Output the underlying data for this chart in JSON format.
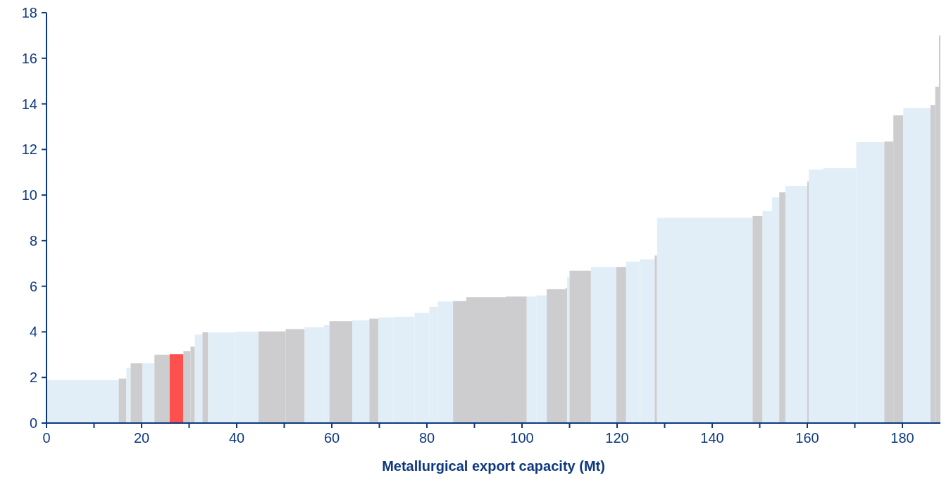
{
  "chart_data": {
    "type": "histogram",
    "xlabel": "Metallurgical export capacity (Mt)",
    "bins": [
      0,
      15.2,
      16.8,
      17.7,
      20.2,
      22.7,
      25.9,
      28.8,
      30.3,
      31.2,
      32.8,
      34.0,
      39.6,
      44.6,
      50.3,
      54.3,
      58.3,
      59.5,
      64.3,
      67.9,
      69.8,
      73.0,
      77.4,
      80.5,
      82.3,
      85.5,
      88.3,
      96.6,
      101.0,
      103.0,
      105.2,
      109.2,
      109.5,
      110.0,
      114.5,
      119.8,
      121.9,
      124.8,
      127.9,
      128.4,
      148.5,
      150.6,
      152.6,
      154.1,
      155.4,
      160.0,
      160.3,
      163.4,
      170.3,
      176.2,
      178.1,
      180.2,
      185.9,
      186.9,
      187.7,
      188.0
    ],
    "values": [
      1.88,
      1.95,
      2.42,
      2.62,
      2.62,
      3.0,
      3.02,
      3.15,
      3.35,
      3.88,
      3.98,
      3.97,
      4.0,
      4.02,
      4.12,
      4.2,
      4.3,
      4.47,
      4.5,
      4.58,
      4.63,
      4.66,
      4.83,
      5.1,
      5.33,
      5.35,
      5.52,
      5.55,
      5.55,
      5.6,
      5.87,
      5.93,
      6.4,
      6.68,
      6.85,
      6.85,
      7.08,
      7.18,
      7.35,
      9.0,
      9.08,
      9.3,
      9.9,
      10.12,
      10.4,
      10.6,
      11.12,
      11.18,
      12.32,
      12.35,
      13.5,
      13.82,
      13.95,
      14.75,
      17.0
    ],
    "colors": [
      "#e1eef8",
      "#cdcdcf",
      "#e1eef8",
      "#cdcdcf",
      "#e1eef8",
      "#cdcdcf",
      "#ff5050",
      "#cdcdcf",
      "#cdcdcf",
      "#e1eef8",
      "#cdcdcf",
      "#e1eef8",
      "#e1eef8",
      "#cdcdcf",
      "#cdcdcf",
      "#e1eef8",
      "#e1eef8",
      "#cdcdcf",
      "#e1eef8",
      "#cdcdcf",
      "#e1eef8",
      "#e1eef8",
      "#e1eef8",
      "#e1eef8",
      "#e1eef8",
      "#cdcdcf",
      "#cdcdcf",
      "#cdcdcf",
      "#e1eef8",
      "#e1eef8",
      "#cdcdcf",
      "#cdcdcf",
      "#e1eef8",
      "#cdcdcf",
      "#e1eef8",
      "#cdcdcf",
      "#e1eef8",
      "#e1eef8",
      "#cdcdcf",
      "#e1eef8",
      "#cdcdcf",
      "#e1eef8",
      "#e1eef8",
      "#cdcdcf",
      "#e1eef8",
      "#cdcdcf",
      "#e1eef8",
      "#e1eef8",
      "#e1eef8",
      "#cdcdcf",
      "#cdcdcf",
      "#e1eef8",
      "#cdcdcf",
      "#cdcdcf",
      "#cdcdcf"
    ],
    "xlim": [
      0,
      188
    ],
    "xticks": [
      0,
      {
        "value": 10,
        "label": null
      },
      20,
      {
        "value": 30,
        "label": null
      },
      40,
      {
        "value": 50,
        "label": null
      },
      60,
      {
        "value": 70,
        "label": null
      },
      80,
      {
        "value": 90,
        "label": null
      },
      100,
      {
        "value": 110,
        "label": null
      },
      120,
      {
        "value": 130,
        "label": null
      },
      140,
      {
        "value": 150,
        "label": null
      },
      160,
      {
        "value": 170,
        "label": null
      },
      180
    ],
    "ylim": [
      0,
      18
    ],
    "yticks": [
      0,
      2,
      4,
      6,
      8,
      10,
      12,
      14,
      16,
      18
    ],
    "grid": false
  }
}
